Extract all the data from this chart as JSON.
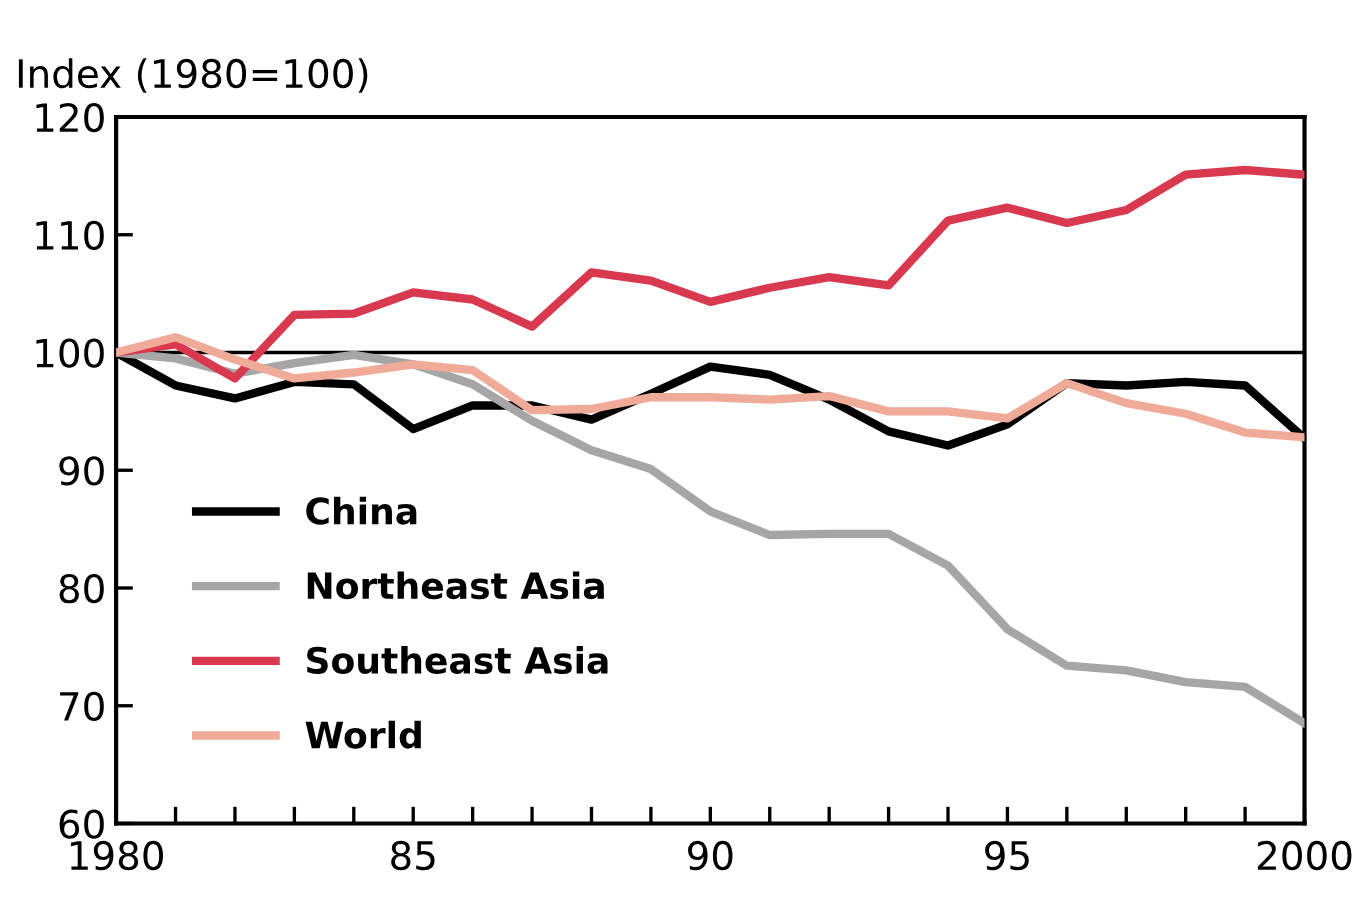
{
  "chart_data": {
    "type": "line",
    "ylabel": "Index (1980=100)",
    "x": [
      1980,
      1981,
      1982,
      1983,
      1984,
      1985,
      1986,
      1987,
      1988,
      1989,
      1990,
      1991,
      1992,
      1993,
      1994,
      1995,
      1996,
      1997,
      1998,
      1999,
      2000
    ],
    "series": [
      {
        "name": "China",
        "color": "#000000",
        "values": [
          100,
          97.2,
          96.1,
          97.5,
          97.3,
          93.5,
          95.5,
          95.5,
          94.3,
          96.5,
          98.8,
          98.1,
          96,
          93.3,
          92.1,
          93.9,
          97.4,
          97.2,
          97.5,
          97.2,
          92.7
        ]
      },
      {
        "name": "Northeast Asia",
        "color": "#a6a6a6",
        "values": [
          100,
          99.5,
          98.2,
          99.1,
          99.8,
          99,
          97.3,
          94.2,
          91.7,
          90.1,
          86.5,
          84.5,
          84.6,
          84.6,
          81.9,
          76.5,
          73.4,
          73,
          72,
          71.6,
          68.5
        ]
      },
      {
        "name": "Southeast Asia",
        "color": "#d9394e",
        "values": [
          100,
          100.7,
          97.8,
          103.2,
          103.3,
          105.1,
          104.5,
          102.2,
          106.8,
          106.1,
          104.3,
          105.5,
          106.4,
          105.7,
          111.2,
          112.3,
          111,
          112.1,
          115.1,
          115.5,
          115.1
        ]
      },
      {
        "name": "World",
        "color": "#f0aa98",
        "values": [
          100,
          101.3,
          99.4,
          97.8,
          98.3,
          99,
          98.5,
          95.1,
          95.2,
          96.2,
          96.2,
          96,
          96.3,
          95,
          95,
          94.4,
          97.4,
          95.7,
          94.8,
          93.2,
          92.8
        ]
      }
    ],
    "xlim": [
      1980,
      2000
    ],
    "xticks": [
      {
        "value": 1980,
        "label": "1980"
      },
      {
        "value": 1981,
        "label": null
      },
      {
        "value": 1982,
        "label": null
      },
      {
        "value": 1983,
        "label": null
      },
      {
        "value": 1984,
        "label": null
      },
      {
        "value": 1985,
        "label": "85"
      },
      {
        "value": 1986,
        "label": null
      },
      {
        "value": 1987,
        "label": null
      },
      {
        "value": 1988,
        "label": null
      },
      {
        "value": 1989,
        "label": null
      },
      {
        "value": 1990,
        "label": "90"
      },
      {
        "value": 1991,
        "label": null
      },
      {
        "value": 1992,
        "label": null
      },
      {
        "value": 1993,
        "label": null
      },
      {
        "value": 1994,
        "label": null
      },
      {
        "value": 1995,
        "label": "95"
      },
      {
        "value": 1996,
        "label": null
      },
      {
        "value": 1997,
        "label": null
      },
      {
        "value": 1998,
        "label": null
      },
      {
        "value": 1999,
        "label": null
      },
      {
        "value": 2000,
        "label": "2000"
      }
    ],
    "ylim": [
      60,
      120
    ],
    "yticks": [
      60,
      70,
      80,
      90,
      100,
      110,
      120
    ],
    "ref_lines": [
      {
        "axis": "y",
        "value": 100,
        "color": "#000000"
      }
    ],
    "grid": false,
    "legend": "bottom left",
    "marker": "none",
    "line_style": "solid"
  }
}
